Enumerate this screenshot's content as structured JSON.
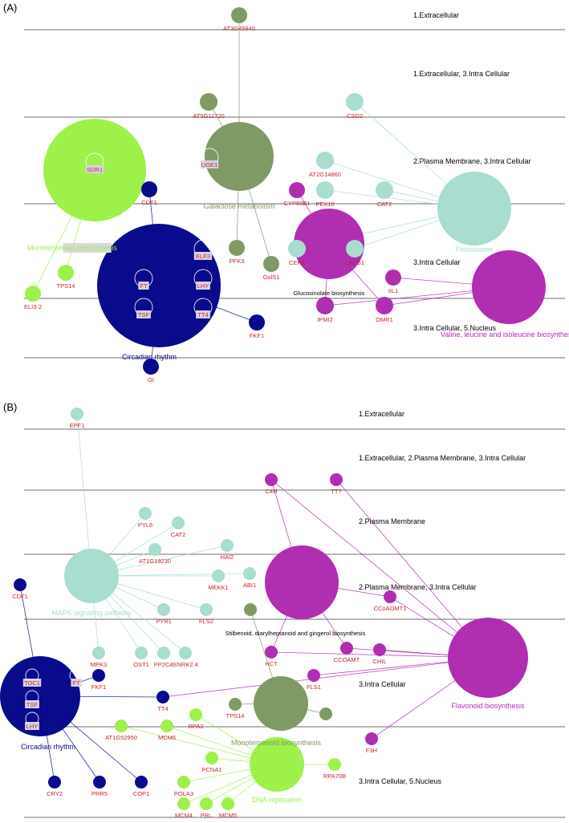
{
  "colors": {
    "olive": "#7f9a64",
    "mint": "#a8ddd0",
    "lime": "#9ef04a",
    "navy": "#0a0a8c",
    "magenta": "#b02eb0",
    "gene_label": "#c0282a",
    "band_line": "#8a8a8a",
    "text": "#000000"
  },
  "panels": [
    {
      "id": "A",
      "label": "(A)",
      "compartments": [
        "1.Extracellular",
        "1.Extracellular, 3.Intra Cellular",
        "2.Plasma Membrane, 3.Intra Cellular",
        "3.Intra Cellular",
        "3.Intra Cellular, 5.Nucleus"
      ],
      "pathways": [
        {
          "id": "gal",
          "label": "Galactose metabolism",
          "color": "olive"
        },
        {
          "id": "mono",
          "label": "Monoterpenoid biosynthesis",
          "color": "lime"
        },
        {
          "id": "circ",
          "label": "Circadian rhythm",
          "color": "navy"
        },
        {
          "id": "gluc",
          "label": "Glucosinolate biosynthesis",
          "color": "magenta"
        },
        {
          "id": "perox",
          "label": "Peroxisome",
          "color": "mint"
        },
        {
          "id": "val",
          "label": "Valine, leucine and isoleucine biosynthesis",
          "color": "magenta"
        }
      ],
      "genes": [
        {
          "id": "AT3G45940",
          "label": "AT3G45940",
          "color": "olive"
        },
        {
          "id": "AT5G11720",
          "label": "AT5G11720",
          "color": "olive"
        },
        {
          "id": "CSD2",
          "label": "CSD2",
          "color": "mint"
        },
        {
          "id": "AT2G14860",
          "label": "AT2G14860",
          "color": "mint"
        },
        {
          "id": "UGE1",
          "label": "UGE1",
          "color": "olive"
        },
        {
          "id": "SDR1",
          "label": "SDR1",
          "color": "lime"
        },
        {
          "id": "CDF1",
          "label": "CDF1",
          "color": "navy"
        },
        {
          "id": "CYP83B1",
          "label": "CYP83B1",
          "color": "magenta"
        },
        {
          "id": "PEX10",
          "label": "PEX10",
          "color": "mint"
        },
        {
          "id": "CAT2",
          "label": "CAT2",
          "color": "mint"
        },
        {
          "id": "PFK3",
          "label": "PFK3",
          "color": "olive"
        },
        {
          "id": "GolS1",
          "label": "GolS1",
          "color": "olive"
        },
        {
          "id": "CER4",
          "label": "CER4",
          "color": "mint"
        },
        {
          "id": "LACS1",
          "label": "LACS1",
          "color": "mint"
        },
        {
          "id": "TPS14",
          "label": "TPS14",
          "color": "lime"
        },
        {
          "id": "ELI3-2",
          "label": "ELI3-2",
          "color": "lime"
        },
        {
          "id": "ELF3",
          "label": "ELF3",
          "color": "navy"
        },
        {
          "id": "FT",
          "label": "FT",
          "color": "navy"
        },
        {
          "id": "LHY",
          "label": "LHY",
          "color": "navy"
        },
        {
          "id": "TSF",
          "label": "TSF",
          "color": "navy"
        },
        {
          "id": "TT4",
          "label": "TT4",
          "color": "navy"
        },
        {
          "id": "IIL1",
          "label": "IIL1",
          "color": "magenta"
        },
        {
          "id": "IPMI2",
          "label": "IPMI2",
          "color": "magenta"
        },
        {
          "id": "OMR1",
          "label": "OMR1",
          "color": "magenta"
        },
        {
          "id": "FKF1",
          "label": "FKF1",
          "color": "navy"
        },
        {
          "id": "GI",
          "label": "GI",
          "color": "navy"
        }
      ],
      "edges": [
        [
          "AT3G45940",
          "gal"
        ],
        [
          "AT5G11720",
          "gal"
        ],
        [
          "UGE1",
          "gal"
        ],
        [
          "PFK3",
          "gal"
        ],
        [
          "GolS1",
          "gal"
        ],
        [
          "CSD2",
          "perox"
        ],
        [
          "AT2G14860",
          "perox"
        ],
        [
          "PEX10",
          "perox"
        ],
        [
          "CAT2",
          "perox"
        ],
        [
          "CER4",
          "perox"
        ],
        [
          "LACS1",
          "perox"
        ],
        [
          "CYP83B1",
          "gluc"
        ],
        [
          "CER4",
          "gluc"
        ],
        [
          "LACS1",
          "gluc"
        ],
        [
          "IPMI2",
          "gluc"
        ],
        [
          "OMR1",
          "gluc"
        ],
        [
          "IIL1",
          "val"
        ],
        [
          "IPMI2",
          "val"
        ],
        [
          "OMR1",
          "val"
        ],
        [
          "CDF1",
          "circ"
        ],
        [
          "FKF1",
          "circ"
        ],
        [
          "GI",
          "circ"
        ],
        [
          "TPS14",
          "mono"
        ],
        [
          "ELI3-2",
          "mono"
        ]
      ]
    },
    {
      "id": "B",
      "label": "(B)",
      "compartments": [
        "1.Extracellular",
        "1.Extracellular, 2.Plasma Membrane, 3.Intra Cellular",
        "2.Plasma Membrane",
        "2.Plasma Membrane, 3.Intra Cellular",
        "3.Intra Cellular",
        "3.Intra Cellular, 5.Nucleus"
      ],
      "pathways": [
        {
          "id": "mapk",
          "label": "MAPK signaling pathway",
          "color": "mint"
        },
        {
          "id": "stil",
          "label": "Stilbenoid, diarylheptanoid and gingerol biosynthesis",
          "color": "magenta"
        },
        {
          "id": "flav",
          "label": "Flavonoid biosynthesis",
          "color": "magenta"
        },
        {
          "id": "circ",
          "label": "Circadian rhythm",
          "color": "navy"
        },
        {
          "id": "mono",
          "label": "Monoterpenoid biosynthesis",
          "color": "olive"
        },
        {
          "id": "dna",
          "label": "DNA replication",
          "color": "lime"
        }
      ],
      "genes": [
        {
          "id": "EPF1",
          "label": "EPF1",
          "color": "mint"
        },
        {
          "id": "C4H",
          "label": "C4H",
          "color": "magenta"
        },
        {
          "id": "TT7",
          "label": "TT7",
          "color": "magenta"
        },
        {
          "id": "PYL6",
          "label": "PYL6",
          "color": "mint"
        },
        {
          "id": "CAT2",
          "label": "CAT2",
          "color": "mint"
        },
        {
          "id": "AT1G19230",
          "label": "AT1G19230",
          "color": "mint"
        },
        {
          "id": "HAI2",
          "label": "HAI2",
          "color": "mint"
        },
        {
          "id": "MEKK1",
          "label": "MEKK1",
          "color": "mint"
        },
        {
          "id": "ABI1",
          "label": "ABI1",
          "color": "mint"
        },
        {
          "id": "CDF1",
          "label": "CDF1",
          "color": "navy"
        },
        {
          "id": "PYR1",
          "label": "PYR1",
          "color": "mint"
        },
        {
          "id": "FLS2",
          "label": "FLS2",
          "color": "mint"
        },
        {
          "id": "CCoAOMT1",
          "label": "CCoAOMT1",
          "color": "magenta"
        },
        {
          "id": "MPK3",
          "label": "MPK3",
          "color": "mint"
        },
        {
          "id": "OST1",
          "label": "OST1",
          "color": "mint"
        },
        {
          "id": "PP2CA",
          "label": "PP2CA",
          "color": "mint"
        },
        {
          "id": "SNRK2.4",
          "label": "SNRK2.4",
          "color": "mint"
        },
        {
          "id": "HCT",
          "label": "HCT",
          "color": "magenta"
        },
        {
          "id": "CCOAMT",
          "label": "CCOAMT",
          "color": "magenta"
        },
        {
          "id": "CHIL",
          "label": "CHIL",
          "color": "magenta"
        },
        {
          "id": "STIL_OLIVE",
          "label": "",
          "color": "olive"
        },
        {
          "id": "FKF1",
          "label": "FKF1",
          "color": "navy"
        },
        {
          "id": "TOC1",
          "label": "TOC1",
          "color": "navy"
        },
        {
          "id": "FT",
          "label": "FT",
          "color": "navy"
        },
        {
          "id": "TSF",
          "label": "TSF",
          "color": "navy"
        },
        {
          "id": "LHY",
          "label": "LHY",
          "color": "navy"
        },
        {
          "id": "TT4",
          "label": "TT4",
          "color": "navy"
        },
        {
          "id": "FLS1",
          "label": "FLS1",
          "color": "magenta"
        },
        {
          "id": "TPS14",
          "label": "TPS14",
          "color": "olive"
        },
        {
          "id": "MONO_OLIVE",
          "label": "",
          "color": "olive"
        },
        {
          "id": "AT1G52950",
          "label": "AT1G52950",
          "color": "lime"
        },
        {
          "id": "MCM6",
          "label": "MCM6",
          "color": "lime"
        },
        {
          "id": "RPA2",
          "label": "RPA2",
          "color": "lime"
        },
        {
          "id": "F3H",
          "label": "F3H",
          "color": "magenta"
        },
        {
          "id": "PCNA1",
          "label": "PCNA1",
          "color": "lime"
        },
        {
          "id": "RPA70B",
          "label": "RPA70B",
          "color": "lime"
        },
        {
          "id": "POLA3",
          "label": "POLA3",
          "color": "lime"
        },
        {
          "id": "MCM4",
          "label": "MCM4",
          "color": "lime"
        },
        {
          "id": "PRL",
          "label": "PRL",
          "color": "lime"
        },
        {
          "id": "MCM5",
          "label": "MCM5",
          "color": "lime"
        },
        {
          "id": "CRY2",
          "label": "CRY2",
          "color": "navy"
        },
        {
          "id": "PRR5",
          "label": "PRR5",
          "color": "navy"
        },
        {
          "id": "COP1",
          "label": "COP1",
          "color": "navy"
        }
      ],
      "edges": [
        [
          "EPF1",
          "mapk"
        ],
        [
          "PYL6",
          "mapk"
        ],
        [
          "CAT2",
          "mapk"
        ],
        [
          "AT1G19230",
          "mapk"
        ],
        [
          "HAI2",
          "mapk"
        ],
        [
          "MEKK1",
          "mapk"
        ],
        [
          "ABI1",
          "mapk"
        ],
        [
          "PYR1",
          "mapk"
        ],
        [
          "FLS2",
          "mapk"
        ],
        [
          "MPK3",
          "mapk"
        ],
        [
          "OST1",
          "mapk"
        ],
        [
          "PP2CA",
          "mapk"
        ],
        [
          "SNRK2.4",
          "mapk"
        ],
        [
          "C4H",
          "stil"
        ],
        [
          "C4H",
          "flav"
        ],
        [
          "TT7",
          "flav"
        ],
        [
          "CCoAOMT1",
          "stil"
        ],
        [
          "CCoAOMT1",
          "flav"
        ],
        [
          "HCT",
          "stil"
        ],
        [
          "HCT",
          "flav"
        ],
        [
          "CCOAMT",
          "stil"
        ],
        [
          "CCOAMT",
          "flav"
        ],
        [
          "CHIL",
          "flav"
        ],
        [
          "FLS1",
          "flav"
        ],
        [
          "F3H",
          "flav"
        ],
        [
          "STIL_OLIVE",
          "mono"
        ],
        [
          "TPS14",
          "mono"
        ],
        [
          "MONO_OLIVE",
          "mono"
        ],
        [
          "CDF1",
          "circ"
        ],
        [
          "FKF1",
          "circ"
        ],
        [
          "TT4",
          "circ"
        ],
        [
          "TT4",
          "flav"
        ],
        [
          "CRY2",
          "circ"
        ],
        [
          "PRR5",
          "circ"
        ],
        [
          "COP1",
          "circ"
        ],
        [
          "AT1G52950",
          "dna"
        ],
        [
          "MCM6",
          "dna"
        ],
        [
          "RPA2",
          "dna"
        ],
        [
          "PCNA1",
          "dna"
        ],
        [
          "RPA70B",
          "dna"
        ],
        [
          "POLA3",
          "dna"
        ],
        [
          "MCM4",
          "dna"
        ],
        [
          "PRL",
          "dna"
        ],
        [
          "MCM5",
          "dna"
        ]
      ]
    }
  ]
}
